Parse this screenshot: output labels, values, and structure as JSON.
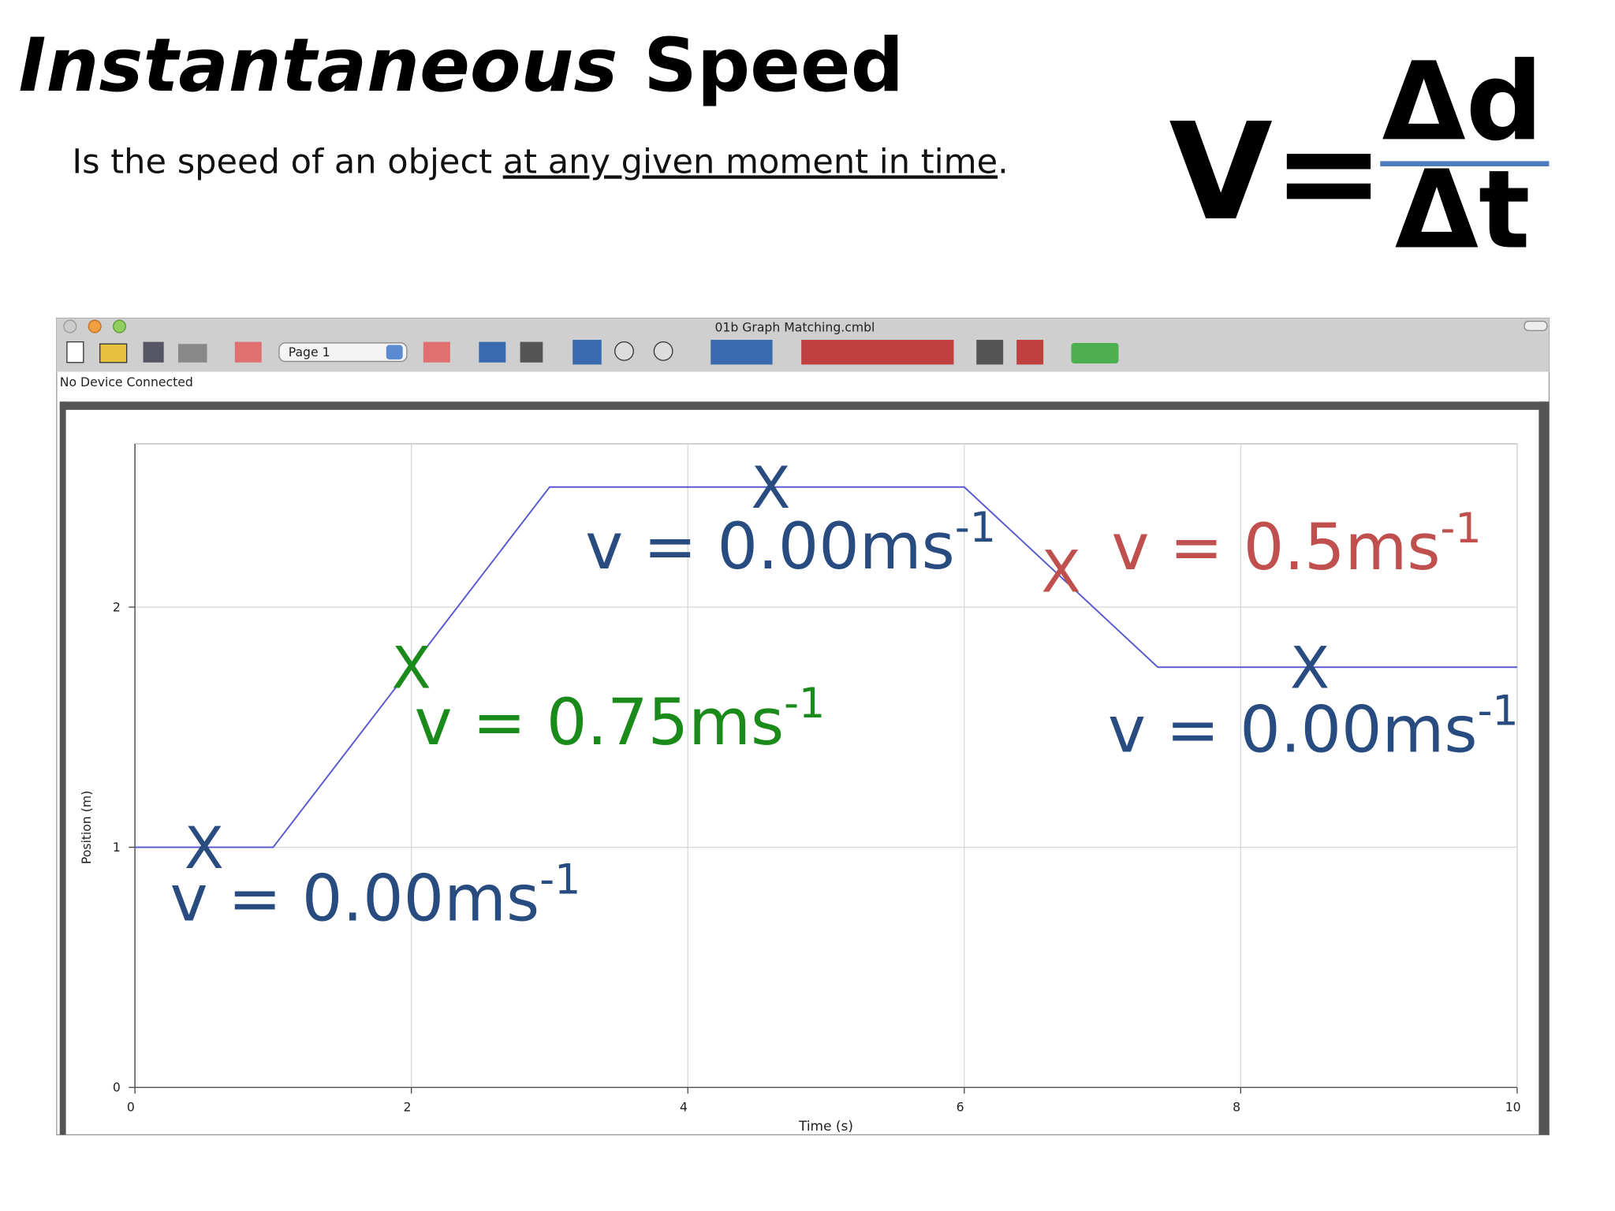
{
  "slide": {
    "title_italic": "Instantaneous",
    "title_rest": "Speed",
    "subtitle_start": "Is the speed of an object ",
    "subtitle_underlined": "at any given moment in time",
    "subtitle_end": ".",
    "formula_lhs": "V=",
    "formula_numerator": "Δd",
    "formula_denominator": "Δt"
  },
  "window": {
    "title": "01b Graph Matching.cmbl",
    "page_selector": "Page 1",
    "status": "No Device Connected"
  },
  "chart_data": {
    "type": "line",
    "x_label": "Time (s)",
    "y_label": "Position (m)",
    "x": [
      0,
      1,
      3,
      6,
      7.4,
      10
    ],
    "series": [
      {
        "color": "#5a5ad0",
        "values": [
          1,
          1,
          2.5,
          2.5,
          1.75,
          1.75
        ]
      }
    ],
    "xlim": [
      0,
      10
    ],
    "ylim": [
      0,
      2.68
    ],
    "xticks": [
      0,
      2,
      4,
      6,
      8,
      10
    ],
    "yticks": [
      0,
      1,
      2
    ],
    "grid": true,
    "annotations": [
      {
        "marker": "X",
        "x": 0.5,
        "y": 1,
        "text": "v = 0.00ms",
        "sup": "-1",
        "color": "#284b80"
      },
      {
        "marker": "X",
        "x": 2,
        "y": 1.75,
        "text": "v = 0.75ms",
        "sup": "-1",
        "color": "#1a8a1a"
      },
      {
        "marker": "X",
        "x": 4.6,
        "y": 2.5,
        "text": "v = 0.00ms",
        "sup": "-1",
        "color": "#284b80"
      },
      {
        "marker": "X",
        "x": 6.7,
        "y": 2.15,
        "text": "v = 0.5ms",
        "sup": "-1",
        "color": "#c0504d"
      },
      {
        "marker": "X",
        "x": 8.5,
        "y": 1.75,
        "text": "v = 0.00ms",
        "sup": "-1",
        "color": "#284b80"
      }
    ]
  }
}
